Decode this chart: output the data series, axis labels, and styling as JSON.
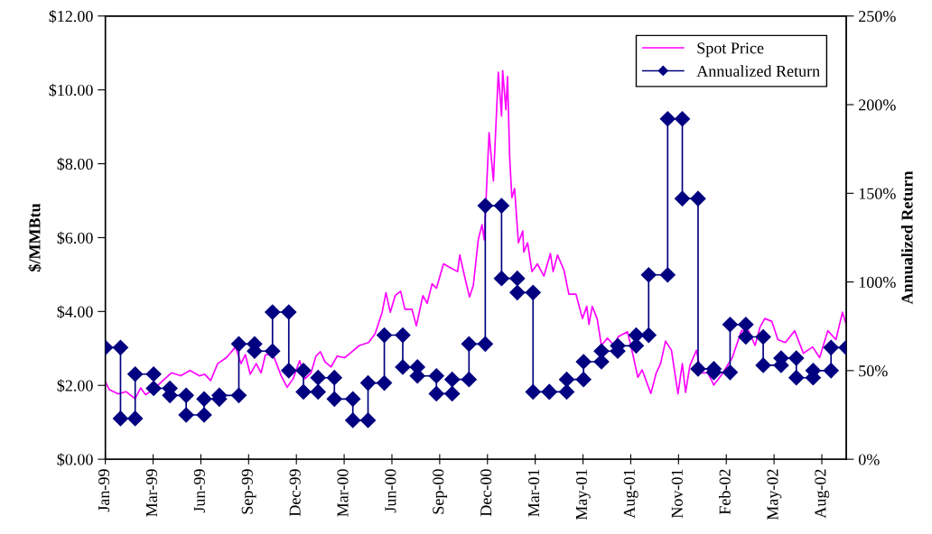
{
  "chart_data": {
    "type": "line",
    "xlim": [
      "1999-01-01",
      "2002-09-27"
    ],
    "xticks": [
      {
        "value": "1999-01-01",
        "label": "Jan-99"
      },
      {
        "value": "1999-03-30",
        "label": "Mar-99"
      },
      {
        "value": "1999-06-26",
        "label": "Jun-99"
      },
      {
        "value": "1999-09-22",
        "label": "Sep-99"
      },
      {
        "value": "1999-12-19",
        "label": "Dec-99"
      },
      {
        "value": "2000-03-16",
        "label": "Mar-00"
      },
      {
        "value": "2000-06-12",
        "label": "Jun-00"
      },
      {
        "value": "2000-09-08",
        "label": "Sep-00"
      },
      {
        "value": "2000-12-05",
        "label": "Dec-00"
      },
      {
        "value": "2001-03-03",
        "label": "Mar-01"
      },
      {
        "value": "2001-05-30",
        "label": "May-01"
      },
      {
        "value": "2001-08-26",
        "label": "Aug-01"
      },
      {
        "value": "2001-11-22",
        "label": "Nov-01"
      },
      {
        "value": "2002-02-18",
        "label": "Feb-02"
      },
      {
        "value": "2002-05-17",
        "label": "May-02"
      },
      {
        "value": "2002-08-13",
        "label": "Aug-02"
      }
    ],
    "ylim": [
      0,
      12
    ],
    "yticks": [
      {
        "value": 0,
        "label": "$0.00"
      },
      {
        "value": 2,
        "label": "$2.00"
      },
      {
        "value": 4,
        "label": "$4.00"
      },
      {
        "value": 6,
        "label": "$6.00"
      },
      {
        "value": 8,
        "label": "$8.00"
      },
      {
        "value": 10,
        "label": "$10.00"
      },
      {
        "value": 12,
        "label": "$12.00"
      }
    ],
    "y2lim": [
      0,
      250
    ],
    "y2ticks": [
      {
        "value": 0,
        "label": "0%"
      },
      {
        "value": 50,
        "label": "50%"
      },
      {
        "value": 100,
        "label": "100%"
      },
      {
        "value": 150,
        "label": "150%"
      },
      {
        "value": 200,
        "label": "200%"
      },
      {
        "value": 250,
        "label": "250%"
      }
    ],
    "ylabel": "$/MMBtu",
    "y2label": "Annualized Return",
    "grid": false,
    "legend": "top right",
    "series": [
      {
        "name": "Spot Price",
        "color": "#ff00ff",
        "marker": "none",
        "x": [
          "1999-01-01",
          "1999-01-08",
          "1999-01-25",
          "1999-02-08",
          "1999-02-25",
          "1999-03-07",
          "1999-03-16",
          "1999-03-31",
          "1999-04-17",
          "1999-05-03",
          "1999-05-20",
          "1999-06-06",
          "1999-06-23",
          "1999-07-03",
          "1999-07-14",
          "1999-07-27",
          "1999-08-12",
          "1999-08-29",
          "1999-09-08",
          "1999-09-16",
          "1999-09-25",
          "1999-10-06",
          "1999-10-15",
          "1999-10-23",
          "1999-11-06",
          "1999-11-21",
          "1999-12-02",
          "1999-12-13",
          "1999-12-25",
          "2000-01-04",
          "2000-01-15",
          "2000-01-24",
          "2000-02-01",
          "2000-02-10",
          "2000-02-21",
          "2000-03-03",
          "2000-03-17",
          "2000-03-27",
          "2000-04-13",
          "2000-04-30",
          "2000-05-12",
          "2000-05-25",
          "2000-06-01",
          "2000-06-09",
          "2000-06-18",
          "2000-06-28",
          "2000-07-06",
          "2000-07-19",
          "2000-07-27",
          "2000-08-08",
          "2000-08-16",
          "2000-08-25",
          "2000-09-02",
          "2000-09-15",
          "2000-09-26",
          "2000-10-11",
          "2000-10-15",
          "2000-10-25",
          "2000-11-02",
          "2000-11-09",
          "2000-11-18",
          "2000-11-25",
          "2000-11-29",
          "2000-12-08",
          "2000-12-16",
          "2000-12-25",
          "2000-12-31",
          "2001-01-02",
          "2001-01-08",
          "2001-01-11",
          "2001-01-15",
          "2001-01-19",
          "2001-01-24",
          "2001-01-31",
          "2001-02-08",
          "2001-02-10",
          "2001-02-17",
          "2001-02-25",
          "2001-03-07",
          "2001-03-19",
          "2001-03-31",
          "2001-04-05",
          "2001-04-13",
          "2001-04-25",
          "2001-05-04",
          "2001-05-17",
          "2001-05-29",
          "2001-06-06",
          "2001-06-10",
          "2001-06-16",
          "2001-06-25",
          "2001-07-03",
          "2001-07-14",
          "2001-07-26",
          "2001-08-03",
          "2001-08-20",
          "2001-08-30",
          "2001-09-08",
          "2001-09-16",
          "2001-10-02",
          "2001-10-12",
          "2001-10-20",
          "2001-10-29",
          "2001-11-09",
          "2001-11-21",
          "2001-11-29",
          "2001-12-05",
          "2001-12-13",
          "2001-12-25",
          "2002-01-02",
          "2002-01-15",
          "2002-01-26",
          "2002-02-10",
          "2002-03-01",
          "2002-03-18",
          "2002-03-31",
          "2002-04-12",
          "2002-04-21",
          "2002-04-30",
          "2002-05-13",
          "2002-05-24",
          "2002-06-07",
          "2002-06-24",
          "2002-07-10",
          "2002-07-27",
          "2002-08-09",
          "2002-08-24",
          "2002-09-08",
          "2002-09-20",
          "2002-09-27"
        ],
        "values": [
          2.1,
          1.89,
          1.77,
          1.83,
          1.64,
          1.93,
          1.75,
          1.89,
          2.13,
          2.34,
          2.26,
          2.4,
          2.26,
          2.3,
          2.13,
          2.59,
          2.75,
          3.04,
          2.59,
          2.83,
          2.3,
          2.59,
          2.34,
          2.83,
          2.83,
          2.26,
          1.95,
          2.18,
          2.67,
          2.18,
          2.34,
          2.79,
          2.91,
          2.63,
          2.5,
          2.79,
          2.75,
          2.87,
          3.08,
          3.16,
          3.4,
          3.98,
          4.51,
          3.98,
          4.43,
          4.55,
          4.06,
          4.06,
          3.61,
          4.43,
          4.22,
          4.75,
          4.63,
          5.29,
          5.2,
          5.08,
          5.53,
          4.88,
          4.39,
          4.71,
          5.94,
          6.35,
          5.94,
          8.84,
          7.53,
          10.48,
          9.29,
          10.52,
          9.46,
          10.36,
          8.15,
          7.08,
          7.33,
          5.86,
          6.18,
          5.61,
          5.86,
          5.08,
          5.29,
          4.96,
          5.57,
          5.08,
          5.53,
          5.12,
          4.47,
          4.47,
          3.81,
          4.14,
          3.65,
          4.14,
          3.81,
          3.08,
          3.28,
          3.08,
          3.32,
          3.45,
          2.83,
          2.22,
          2.42,
          1.78,
          2.34,
          2.59,
          3.2,
          2.95,
          1.77,
          2.59,
          1.81,
          2.54,
          2.95,
          2.34,
          2.34,
          2.01,
          2.3,
          2.75,
          3.48,
          3.48,
          3.08,
          3.57,
          3.81,
          3.73,
          3.24,
          3.16,
          3.48,
          2.87,
          3.04,
          2.75,
          3.48,
          3.24,
          3.98,
          3.65
        ]
      },
      {
        "name": "Annualized Return",
        "color": "#000080",
        "marker": "diamond",
        "axis": "y2",
        "x": [
          "1999-01-01",
          "1999-01-29",
          "1999-01-29",
          "1999-02-25",
          "1999-02-25",
          "1999-03-31",
          "1999-03-31",
          "1999-04-30",
          "1999-04-30",
          "1999-05-30",
          "1999-05-30",
          "1999-07-02",
          "1999-07-02",
          "1999-07-30",
          "1999-07-30",
          "1999-09-04",
          "1999-09-04",
          "1999-10-03",
          "1999-10-03",
          "1999-11-05",
          "1999-11-05",
          "1999-12-05",
          "1999-12-05",
          "2000-01-01",
          "2000-01-01",
          "2000-01-28",
          "2000-01-28",
          "2000-02-27",
          "2000-02-27",
          "2000-04-01",
          "2000-04-01",
          "2000-04-29",
          "2000-04-29",
          "2000-05-29",
          "2000-05-29",
          "2000-07-02",
          "2000-07-02",
          "2000-07-29",
          "2000-07-29",
          "2000-09-02",
          "2000-09-02",
          "2000-10-01",
          "2000-10-01",
          "2000-11-01",
          "2000-11-01",
          "2000-12-01",
          "2000-12-01",
          "2000-12-31",
          "2000-12-31",
          "2001-01-29",
          "2001-01-29",
          "2001-02-27",
          "2001-02-27",
          "2001-03-29",
          "2001-03-29",
          "2001-04-30",
          "2001-04-30",
          "2001-05-31",
          "2001-05-31",
          "2001-07-03",
          "2001-07-03",
          "2001-08-02",
          "2001-08-02",
          "2001-09-05",
          "2001-09-05",
          "2001-09-28",
          "2001-09-28",
          "2001-11-02",
          "2001-11-02",
          "2001-11-29",
          "2001-11-29",
          "2001-12-28",
          "2001-12-28",
          "2002-01-26",
          "2002-01-26",
          "2002-02-25",
          "2002-02-25",
          "2002-03-26",
          "2002-03-26",
          "2002-04-27",
          "2002-04-27",
          "2002-05-30",
          "2002-05-30",
          "2002-06-27",
          "2002-06-27",
          "2002-07-28",
          "2002-07-28",
          "2002-08-30",
          "2002-08-30",
          "2002-09-27"
        ],
        "values": [
          63,
          63,
          23,
          23,
          48,
          48,
          40,
          40,
          36,
          36,
          25,
          25,
          34,
          34,
          36,
          36,
          65,
          65,
          61,
          61,
          83,
          83,
          50,
          50,
          38,
          38,
          46,
          46,
          34,
          34,
          22,
          22,
          43,
          43,
          70,
          70,
          52,
          52,
          47,
          47,
          37,
          37,
          45,
          45,
          65,
          65,
          143,
          143,
          102,
          102,
          94,
          94,
          38,
          38,
          38,
          38,
          45,
          45,
          55,
          55,
          61,
          61,
          64,
          64,
          70,
          70,
          104,
          104,
          192,
          192,
          147,
          147,
          51,
          51,
          49,
          49,
          76,
          76,
          69,
          69,
          53,
          53,
          57,
          57,
          46,
          46,
          50,
          50,
          63,
          63
        ]
      }
    ]
  }
}
